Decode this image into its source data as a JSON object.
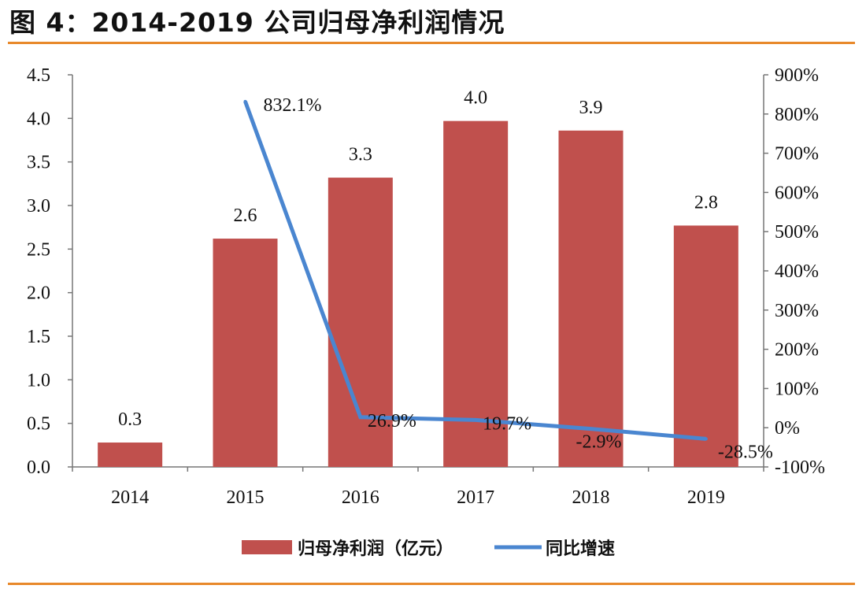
{
  "title": "图 4：2014-2019 公司归母净利润情况",
  "colors": {
    "bar": "#c0504d",
    "line": "#4a86d0",
    "rule": "#e8892b",
    "axis": "#777777"
  },
  "chart_data": {
    "type": "bar",
    "categories": [
      "2014",
      "2015",
      "2016",
      "2017",
      "2018",
      "2019"
    ],
    "series": [
      {
        "name": "归母净利润（亿元）",
        "type": "bar",
        "axis": "left",
        "values": [
          0.28,
          2.62,
          3.32,
          3.97,
          3.86,
          2.77
        ],
        "labels": [
          "0.3",
          "2.6",
          "3.3",
          "4.0",
          "3.9",
          "2.8"
        ]
      },
      {
        "name": "同比增速",
        "type": "line",
        "axis": "right",
        "values": [
          null,
          832.1,
          26.9,
          19.7,
          -2.9,
          -28.5
        ],
        "labels": [
          "",
          "832.1%",
          "26.9%",
          "19.7%",
          "-2.9%",
          "-28.5%"
        ]
      }
    ],
    "y_left": {
      "ylim": [
        0,
        4.5
      ],
      "ticks": [
        "0.0",
        "0.5",
        "1.0",
        "1.5",
        "2.0",
        "2.5",
        "3.0",
        "3.5",
        "4.0",
        "4.5"
      ]
    },
    "y_right": {
      "ylim": [
        -100,
        900
      ],
      "ticks": [
        "-100%",
        "0%",
        "100%",
        "200%",
        "300%",
        "400%",
        "500%",
        "600%",
        "700%",
        "800%",
        "900%"
      ]
    },
    "legend": "bottom",
    "grid": false
  }
}
